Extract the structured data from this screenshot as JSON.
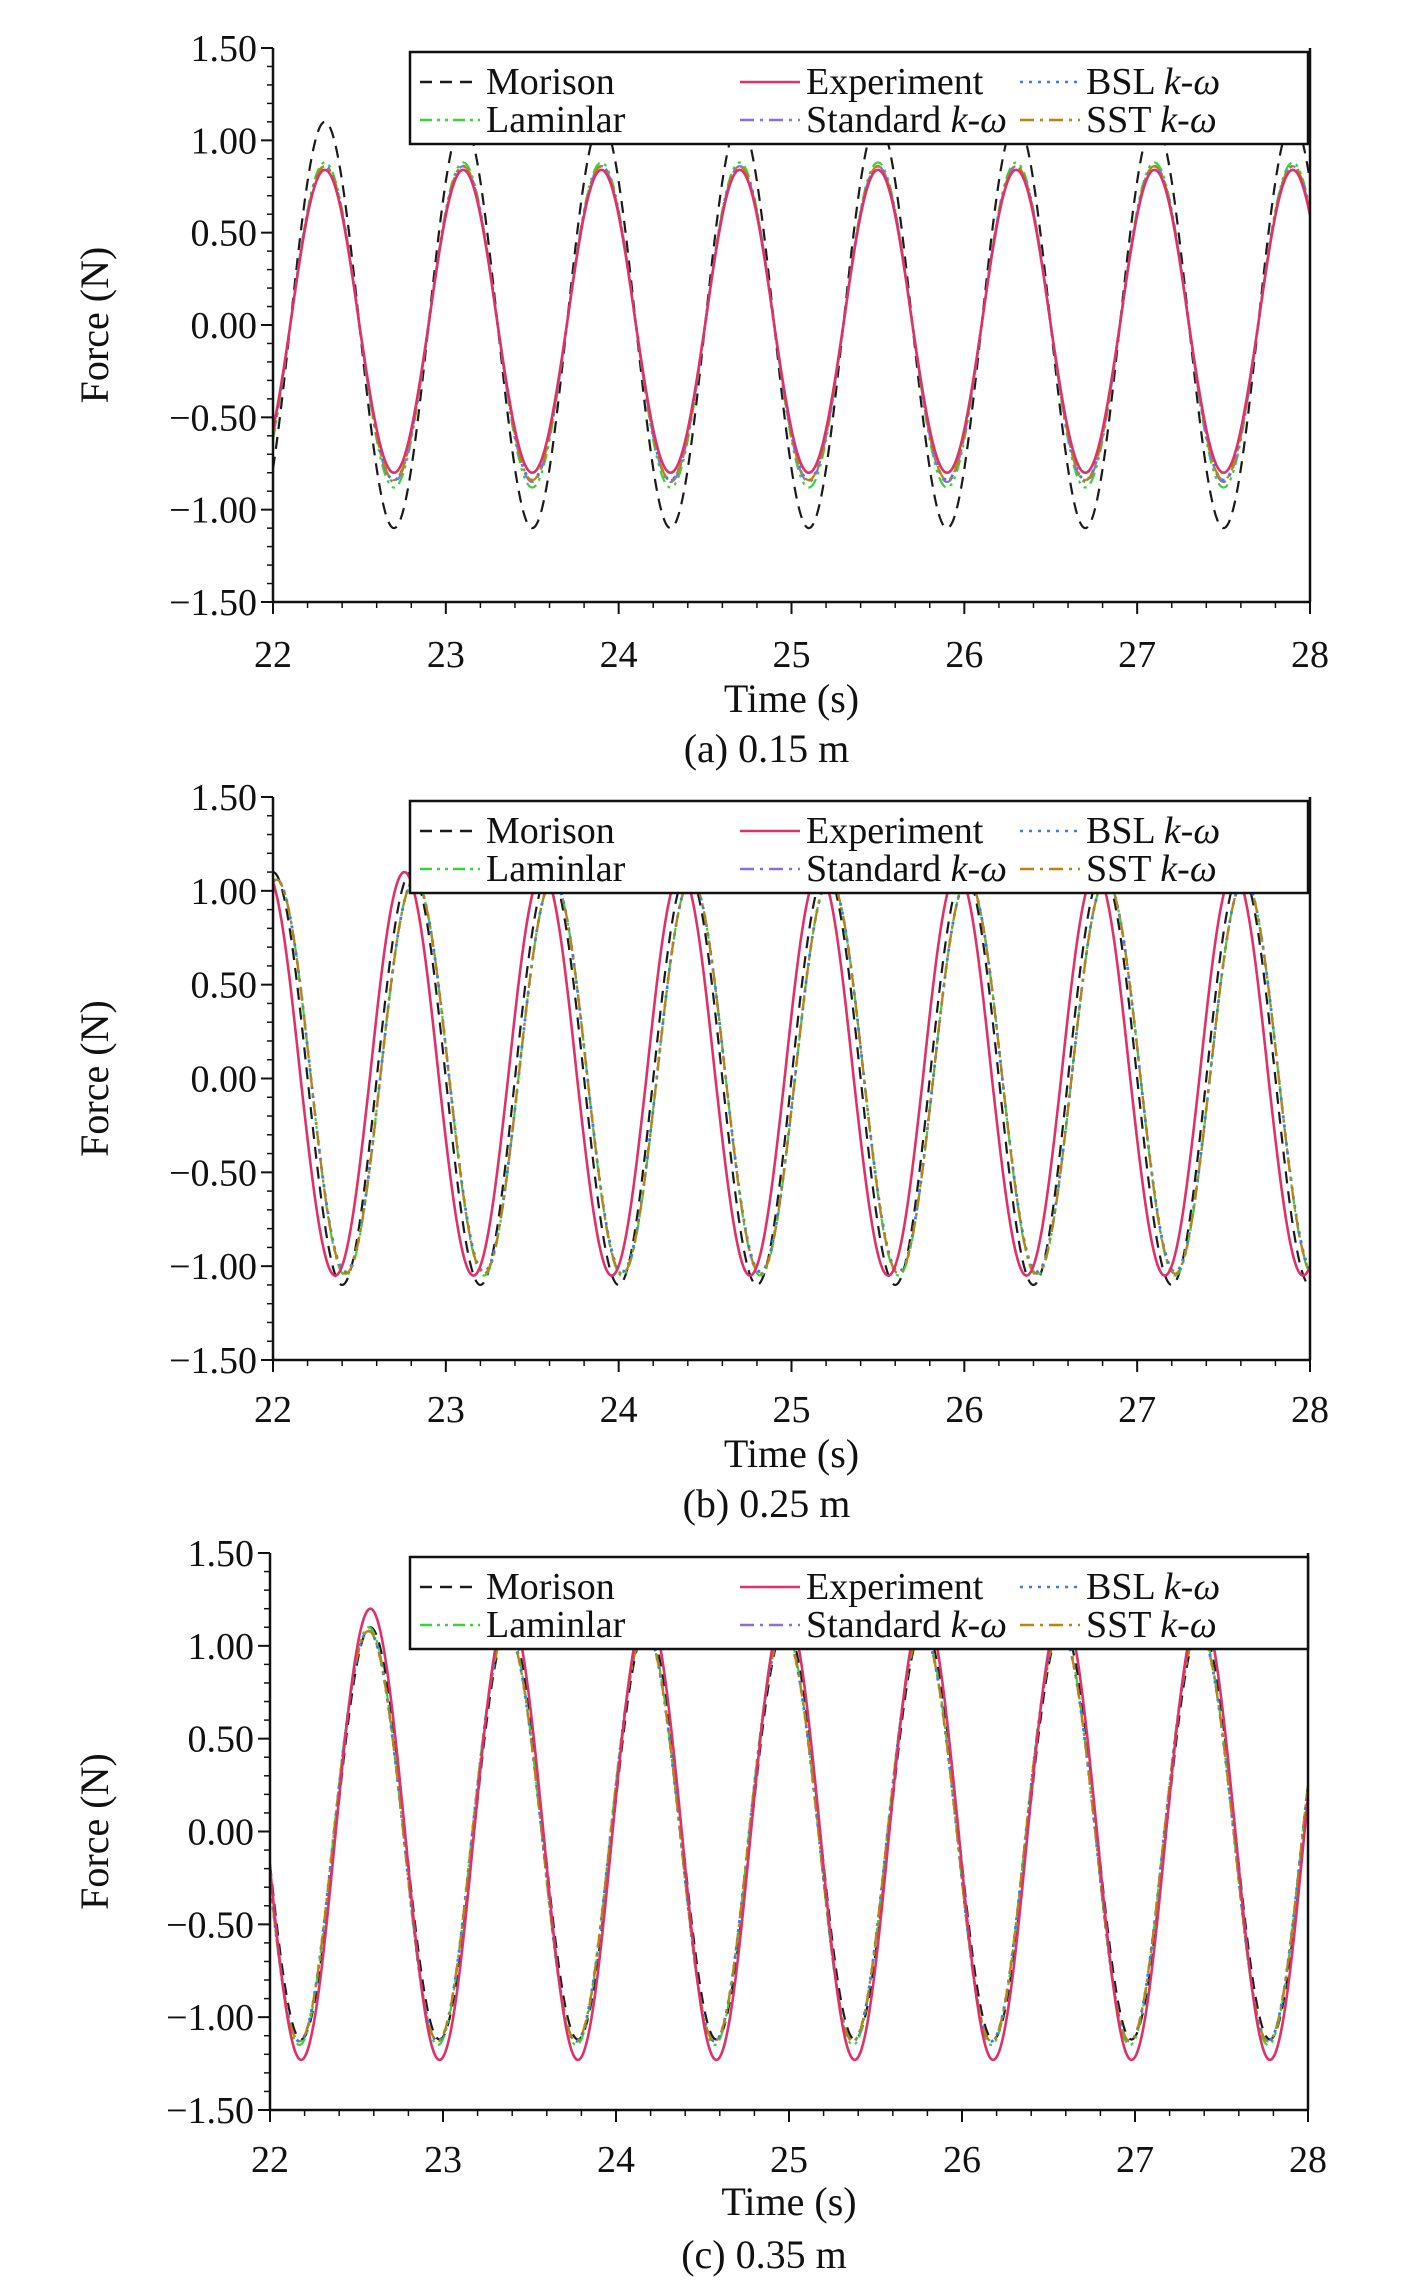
{
  "figure": {
    "panels": [
      {
        "caption": "(a) 0.15 m",
        "legend": [
          {
            "label": "Morison",
            "color": "#1a1a1a",
            "dash": "dashed"
          },
          {
            "label": "Experiment",
            "color": "#e0306a",
            "dash": "solid"
          },
          {
            "label": "BSL k-ω",
            "color": "#3a7fe0",
            "dash": "dotted"
          },
          {
            "label": "Laminlar",
            "color": "#3ad23a",
            "dash": "dash-dot-dot"
          },
          {
            "label": "Standard k-ω",
            "color": "#8a6ee0",
            "dash": "dash-dot"
          },
          {
            "label": "SST k-ω",
            "color": "#b8860b",
            "dash": "dash-dot"
          }
        ]
      },
      {
        "caption": "(b) 0.25 m",
        "legend": [
          {
            "label": "Morison",
            "color": "#1a1a1a",
            "dash": "dashed"
          },
          {
            "label": "Experiment",
            "color": "#e0306a",
            "dash": "solid"
          },
          {
            "label": "BSL k-ω",
            "color": "#3a7fe0",
            "dash": "dotted"
          },
          {
            "label": "Laminlar",
            "color": "#3ad23a",
            "dash": "dash-dot-dot"
          },
          {
            "label": "Standard k-ω",
            "color": "#8a6ee0",
            "dash": "dash-dot"
          },
          {
            "label": "SST k-ω",
            "color": "#b8860b",
            "dash": "dash-dot"
          }
        ]
      },
      {
        "caption": "(c) 0.35 m",
        "legend": [
          {
            "label": "Morison",
            "color": "#1a1a1a",
            "dash": "dashed"
          },
          {
            "label": "Experiment",
            "color": "#e0306a",
            "dash": "solid"
          },
          {
            "label": "BSL k-ω",
            "color": "#3a7fe0",
            "dash": "dotted"
          },
          {
            "label": "Laminlar",
            "color": "#3ad23a",
            "dash": "dash-dot-dot"
          },
          {
            "label": "Standard k-ω",
            "color": "#8a6ee0",
            "dash": "dash-dot"
          },
          {
            "label": "SST k-ω",
            "color": "#b8860b",
            "dash": "dash-dot"
          }
        ]
      }
    ]
  },
  "chart_data": [
    {
      "type": "line",
      "caption": "(a) 0.15 m",
      "xlabel": "Time (s)",
      "ylabel": "Force (N)",
      "xlim": [
        22,
        28
      ],
      "ylim": [
        -1.5,
        1.5
      ],
      "x_ticks": [
        "22",
        "23",
        "24",
        "25",
        "26",
        "27",
        "28"
      ],
      "y_ticks": [
        "1.50",
        "1.00",
        "0.50",
        "0.00",
        "−0.50",
        "−1.00",
        "−1.50"
      ],
      "grid": false,
      "legend_position": "top-right",
      "wave": {
        "period_s": 0.8,
        "phase_ref_time_s": 22.3,
        "shape": "cosine peaking at phase_ref_time_s"
      },
      "series": [
        {
          "name": "Morison",
          "amplitude_pos": 1.1,
          "amplitude_neg": 1.1,
          "time_shift_s": 0.0
        },
        {
          "name": "Experiment",
          "amplitude_pos": 0.84,
          "amplitude_neg": 0.8,
          "time_shift_s": 0.0
        },
        {
          "name": "BSL k-ω",
          "amplitude_pos": 0.86,
          "amplitude_neg": 0.84,
          "time_shift_s": 0.0
        },
        {
          "name": "Laminlar",
          "amplitude_pos": 0.88,
          "amplitude_neg": 0.88,
          "time_shift_s": 0.0
        },
        {
          "name": "Standard k-ω",
          "amplitude_pos": 0.86,
          "amplitude_neg": 0.85,
          "time_shift_s": 0.0
        },
        {
          "name": "SST k-ω",
          "amplitude_pos": 0.86,
          "amplitude_neg": 0.84,
          "time_shift_s": 0.0
        }
      ]
    },
    {
      "type": "line",
      "caption": "(b) 0.25 m",
      "xlabel": "Time (s)",
      "ylabel": "Force (N)",
      "xlim": [
        22,
        28
      ],
      "ylim": [
        -1.5,
        1.5
      ],
      "x_ticks": [
        "22",
        "23",
        "24",
        "25",
        "26",
        "27",
        "28"
      ],
      "y_ticks": [
        "1.50",
        "1.00",
        "0.50",
        "0.00",
        "−0.50",
        "−1.00",
        "−1.50"
      ],
      "grid": false,
      "legend_position": "top-right",
      "wave": {
        "period_s": 0.8,
        "phase_ref_time_s": 22.0,
        "shape": "cosine peaking at phase_ref_time_s"
      },
      "series": [
        {
          "name": "Morison",
          "amplitude_pos": 1.1,
          "amplitude_neg": 1.1,
          "time_shift_s": 0.0
        },
        {
          "name": "Experiment",
          "amplitude_pos": 1.1,
          "amplitude_neg": 1.05,
          "time_shift_s": -0.04
        },
        {
          "name": "BSL k-ω",
          "amplitude_pos": 1.06,
          "amplitude_neg": 1.03,
          "time_shift_s": 0.02
        },
        {
          "name": "Laminlar",
          "amplitude_pos": 1.06,
          "amplitude_neg": 1.05,
          "time_shift_s": 0.02
        },
        {
          "name": "Standard k-ω",
          "amplitude_pos": 1.06,
          "amplitude_neg": 1.04,
          "time_shift_s": 0.02
        },
        {
          "name": "SST k-ω",
          "amplitude_pos": 1.06,
          "amplitude_neg": 1.04,
          "time_shift_s": 0.02
        }
      ]
    },
    {
      "type": "line",
      "caption": "(c) 0.35 m",
      "xlabel": "Time (s)",
      "ylabel": "Force (N)",
      "xlim": [
        22,
        28
      ],
      "ylim": [
        -1.5,
        1.5
      ],
      "x_ticks": [
        "22",
        "23",
        "24",
        "25",
        "26",
        "27",
        "28"
      ],
      "y_ticks": [
        "1.50",
        "1.00",
        "0.50",
        "0.00",
        "−0.50",
        "−1.00",
        "−1.50"
      ],
      "grid": false,
      "legend_position": "top-right",
      "wave": {
        "period_s": 0.8,
        "phase_ref_time_s": 22.58,
        "shape": "cosine peaking at phase_ref_time_s"
      },
      "series": [
        {
          "name": "Morison",
          "amplitude_pos": 1.1,
          "amplitude_neg": 1.12,
          "time_shift_s": 0.0
        },
        {
          "name": "Experiment",
          "amplitude_pos": 1.2,
          "amplitude_neg": 1.23,
          "time_shift_s": 0.0
        },
        {
          "name": "BSL k-ω",
          "amplitude_pos": 1.08,
          "amplitude_neg": 1.13,
          "time_shift_s": -0.01
        },
        {
          "name": "Laminlar",
          "amplitude_pos": 1.1,
          "amplitude_neg": 1.15,
          "time_shift_s": -0.01
        },
        {
          "name": "Standard k-ω",
          "amplitude_pos": 1.08,
          "amplitude_neg": 1.13,
          "time_shift_s": -0.01
        },
        {
          "name": "SST k-ω",
          "amplitude_pos": 1.08,
          "amplitude_neg": 1.13,
          "time_shift_s": -0.01
        }
      ]
    }
  ]
}
